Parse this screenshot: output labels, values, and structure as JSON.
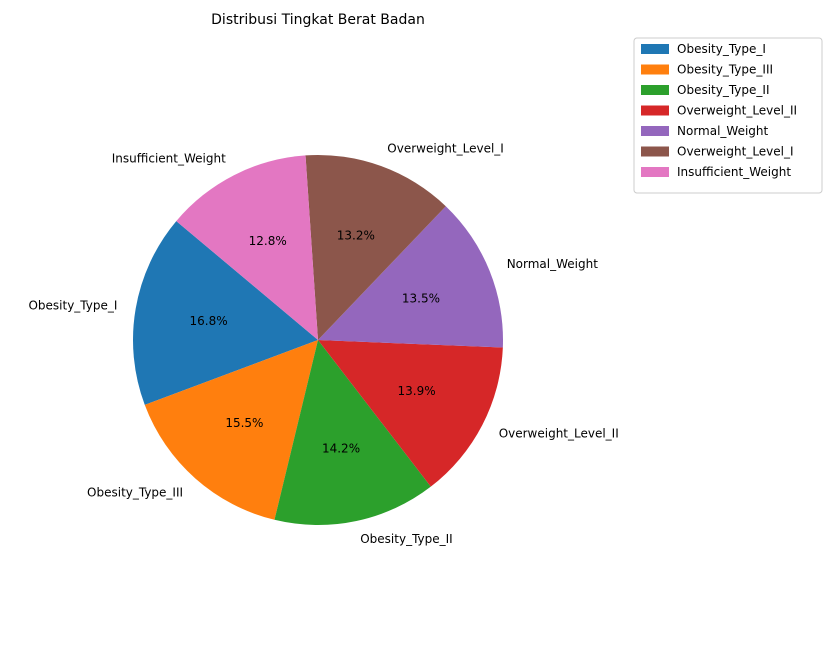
{
  "chart_data": {
    "type": "pie",
    "title": "Distribusi Tingkat Berat Badan",
    "labels": [
      "Obesity_Type_I",
      "Obesity_Type_III",
      "Obesity_Type_II",
      "Overweight_Level_II",
      "Normal_Weight",
      "Overweight_Level_I",
      "Insufficient_Weight"
    ],
    "values": [
      16.8,
      15.5,
      14.2,
      13.9,
      13.5,
      13.2,
      12.8
    ],
    "percent_labels": [
      "16.8%",
      "15.5%",
      "14.2%",
      "13.9%",
      "13.5%",
      "13.2%",
      "12.8%"
    ],
    "colors": [
      "#1f77b4",
      "#ff7f0e",
      "#2ca02c",
      "#d62728",
      "#9467bd",
      "#8c564b",
      "#e377c2"
    ],
    "start_angle_deg": 140,
    "direction": "counterclockwise",
    "legend": {
      "placement": "top-right",
      "entries": [
        "Obesity_Type_I",
        "Obesity_Type_III",
        "Obesity_Type_II",
        "Overweight_Level_II",
        "Normal_Weight",
        "Overweight_Level_I",
        "Insufficient_Weight"
      ]
    }
  }
}
